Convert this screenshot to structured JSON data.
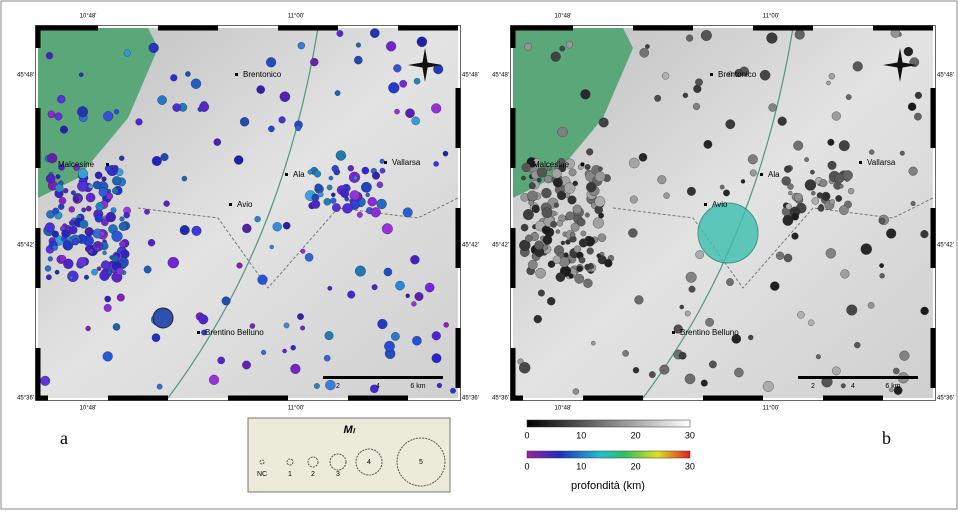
{
  "panels": [
    {
      "label": "a",
      "places": [
        "Brentonico",
        "Malcesine",
        "Vallarsa",
        "Ala",
        "Avio",
        "Brentino Belluno"
      ],
      "lon_labels": [
        "10°48'",
        "11°00'"
      ],
      "lat_labels": [
        "45°48'",
        "45°42'",
        "45°36'"
      ],
      "scale": [
        "2",
        "4",
        "6 km"
      ]
    },
    {
      "label": "b",
      "places": [
        "Brentonico",
        "Malcesine",
        "Vallarsa",
        "Ala",
        "Avio",
        "Brentino Belluno"
      ],
      "lon_labels": [
        "10°48'",
        "11°00'"
      ],
      "lat_labels": [
        "45°48'",
        "45°42'",
        "45°36'"
      ],
      "scale": [
        "2",
        "4",
        "6 km"
      ]
    }
  ],
  "legend": {
    "title": "Mₗ",
    "classes": [
      "NC",
      "1",
      "2",
      "3",
      "4",
      "5"
    ]
  },
  "colorbars": {
    "gray_ticks": [
      "0",
      "10",
      "20",
      "30"
    ],
    "color_ticks": [
      "0",
      "10",
      "20",
      "30"
    ],
    "title": "profondità (km)"
  }
}
